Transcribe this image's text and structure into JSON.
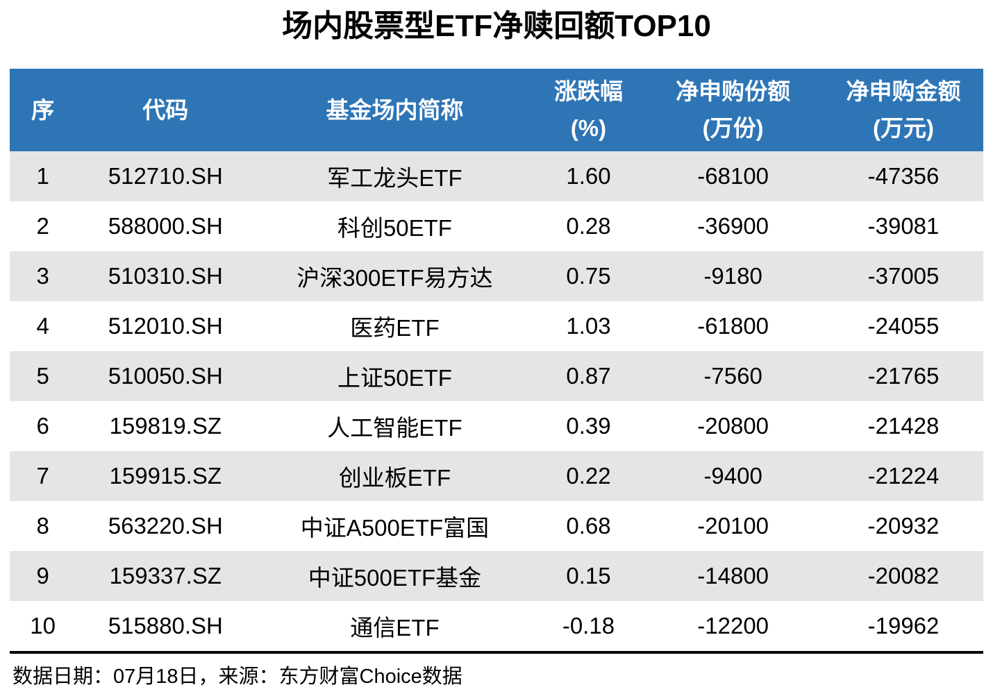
{
  "title": "场内股票型ETF净赎回额TOP10",
  "footer": {
    "text": "数据日期：07月18日，来源：东方财富Choice数据"
  },
  "colors": {
    "header_bg": "#2E75B6",
    "header_text": "#FFFFFF",
    "row_alt_bg": "#E5E5E5",
    "row_bg": "#FFFFFF",
    "rule": "#000000"
  },
  "table": {
    "header_lines": [
      [
        "序"
      ],
      [
        "代码"
      ],
      [
        "基金场内简称"
      ],
      [
        "涨跌幅",
        "(%)"
      ],
      [
        "净申购份额",
        "(万份)"
      ],
      [
        "净申购金额",
        "(万元)"
      ]
    ],
    "col_widths_pct": [
      6.8,
      18.4,
      28.7,
      11.1,
      18.6,
      16.4
    ]
  },
  "chart_data": {
    "type": "table",
    "title": "场内股票型ETF净赎回额TOP10",
    "columns": [
      "序",
      "代码",
      "基金场内简称",
      "涨跌幅(%)",
      "净申购份额(万份)",
      "净申购金额(万元)"
    ],
    "rows": [
      [
        "1",
        "512710.SH",
        "军工龙头ETF",
        "1.60",
        "-68100",
        "-47356"
      ],
      [
        "2",
        "588000.SH",
        "科创50ETF",
        "0.28",
        "-36900",
        "-39081"
      ],
      [
        "3",
        "510310.SH",
        "沪深300ETF易方达",
        "0.75",
        "-9180",
        "-37005"
      ],
      [
        "4",
        "512010.SH",
        "医药ETF",
        "1.03",
        "-61800",
        "-24055"
      ],
      [
        "5",
        "510050.SH",
        "上证50ETF",
        "0.87",
        "-7560",
        "-21765"
      ],
      [
        "6",
        "159819.SZ",
        "人工智能ETF",
        "0.39",
        "-20800",
        "-21428"
      ],
      [
        "7",
        "159915.SZ",
        "创业板ETF",
        "0.22",
        "-9400",
        "-21224"
      ],
      [
        "8",
        "563220.SH",
        "中证A500ETF富国",
        "0.68",
        "-20100",
        "-20932"
      ],
      [
        "9",
        "159337.SZ",
        "中证500ETF基金",
        "0.15",
        "-14800",
        "-20082"
      ],
      [
        "10",
        "515880.SH",
        "通信ETF",
        "-0.18",
        "-12200",
        "-19962"
      ]
    ],
    "source_note": "数据日期：07月18日，来源：东方财富Choice数据",
    "layout": {
      "striped": true,
      "first_row_shaded": true,
      "header_style": "blue-bar"
    }
  }
}
